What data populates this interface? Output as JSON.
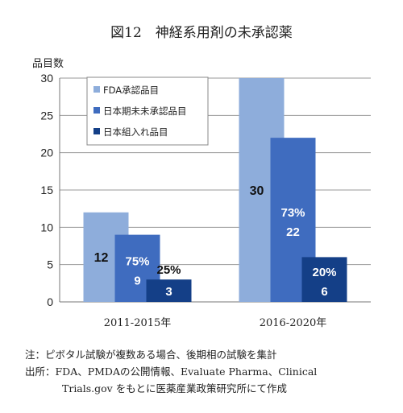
{
  "title": "図12　神経系用剤の未承認薬",
  "chart_data": {
    "type": "bar",
    "ylabel": "品目数",
    "ylim": [
      0,
      30
    ],
    "yticks": [
      0,
      5,
      10,
      15,
      20,
      25,
      30
    ],
    "categories": [
      "2011-2015年",
      "2016-2020年"
    ],
    "series": [
      {
        "name": "FDA承認品目",
        "values": [
          12,
          30
        ],
        "labels": [
          "12",
          "30"
        ],
        "pct": [
          "",
          ""
        ],
        "color": "#8EADDB"
      },
      {
        "name": "日本期未未承認品目",
        "values": [
          9,
          22
        ],
        "labels": [
          "9",
          "22"
        ],
        "pct": [
          "75%",
          "73%"
        ],
        "color": "#3F6CBF"
      },
      {
        "name": "日本組入れ品目",
        "values": [
          3,
          6
        ],
        "labels": [
          "3",
          "6"
        ],
        "pct": [
          "25%",
          "20%"
        ],
        "color": "#143F87"
      }
    ],
    "grid": true,
    "legend": "top-left"
  },
  "notes": {
    "note1": "注：ピボタル試験が複数ある場合、後期相の試験を集計",
    "source1": "出所：FDA、PMDAの公開情報、Evaluate Pharma、Clinical",
    "source2": "Trials.gov をもとに医薬産業政策研究所にて作成"
  }
}
